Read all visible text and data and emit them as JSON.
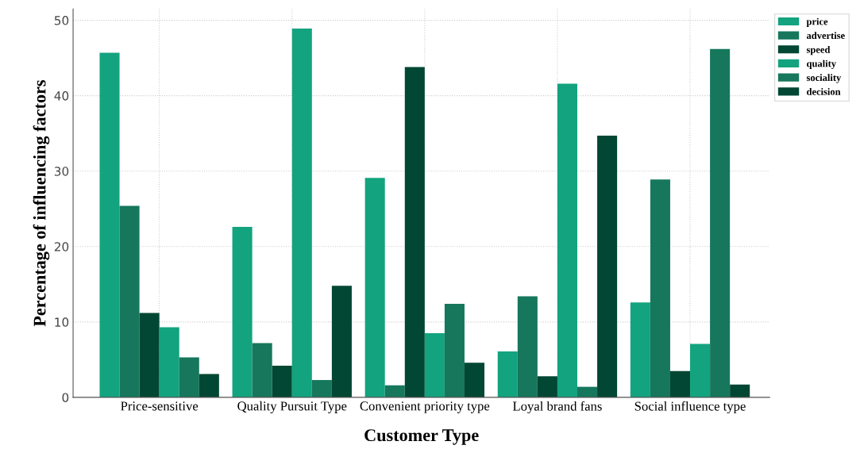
{
  "chart_data": {
    "type": "bar",
    "xlabel": "Customer Type",
    "ylabel": "Percentage of influencing factors",
    "categories": [
      "Price-sensitive",
      "Quality Pursuit Type",
      "Convenient priority type",
      "Loyal brand fans",
      "Social influence type"
    ],
    "series": [
      {
        "name": "price",
        "color": "#13a37f",
        "values": [
          45.7,
          22.6,
          29.1,
          6.1,
          12.6
        ]
      },
      {
        "name": "advertise",
        "color": "#16775d",
        "values": [
          25.4,
          7.2,
          1.6,
          13.4,
          28.9
        ]
      },
      {
        "name": "speed",
        "color": "#024733",
        "values": [
          11.2,
          4.2,
          43.8,
          2.8,
          3.5
        ]
      },
      {
        "name": "quality",
        "color": "#13a37f",
        "values": [
          9.3,
          48.9,
          8.5,
          41.6,
          7.1
        ]
      },
      {
        "name": "sociality",
        "color": "#16775d",
        "values": [
          5.3,
          2.3,
          12.4,
          1.4,
          46.2
        ]
      },
      {
        "name": "decision",
        "color": "#024733",
        "values": [
          3.1,
          14.8,
          4.6,
          34.7,
          1.7
        ]
      }
    ],
    "ylim": [
      0,
      51.5
    ],
    "yticks": [
      0,
      10,
      20,
      30,
      40,
      50
    ],
    "grid": true,
    "legend": "top right"
  }
}
